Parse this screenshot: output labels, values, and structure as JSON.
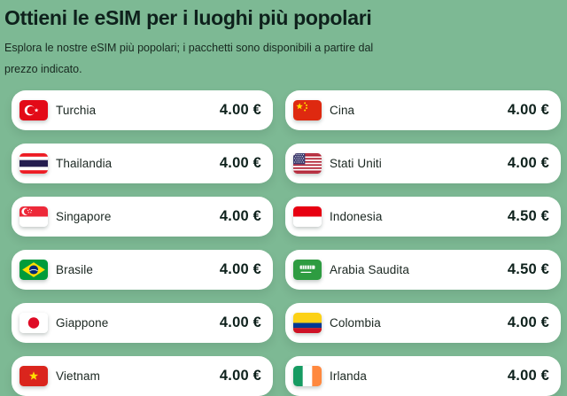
{
  "header": {
    "title": "Ottieni le eSIM per i luoghi più popolari",
    "subtitle": "Esplora le nostre eSIM più popolari; i pacchetti sono disponibili a partire dal prezzo indicato."
  },
  "colors": {
    "background": "#7DB994",
    "card_background": "#FFFFFF",
    "heading_text": "#0E211C",
    "body_text": "#17281F",
    "price_text": "#0E211C"
  },
  "currency_symbol": "€",
  "cards": [
    {
      "country": "Turchia",
      "price": "4.00 €",
      "flag": "turkey"
    },
    {
      "country": "Cina",
      "price": "4.00 €",
      "flag": "china"
    },
    {
      "country": "Thailandia",
      "price": "4.00 €",
      "flag": "thailand"
    },
    {
      "country": "Stati Uniti",
      "price": "4.00 €",
      "flag": "usa"
    },
    {
      "country": "Singapore",
      "price": "4.00 €",
      "flag": "singapore"
    },
    {
      "country": "Indonesia",
      "price": "4.50 €",
      "flag": "indonesia"
    },
    {
      "country": "Brasile",
      "price": "4.00 €",
      "flag": "brazil"
    },
    {
      "country": "Arabia Saudita",
      "price": "4.50 €",
      "flag": "saudi-arabia"
    },
    {
      "country": "Giappone",
      "price": "4.00 €",
      "flag": "japan"
    },
    {
      "country": "Colombia",
      "price": "4.00 €",
      "flag": "colombia"
    },
    {
      "country": "Vietnam",
      "price": "4.00 €",
      "flag": "vietnam"
    },
    {
      "country": "Irlanda",
      "price": "4.00 €",
      "flag": "ireland"
    }
  ]
}
